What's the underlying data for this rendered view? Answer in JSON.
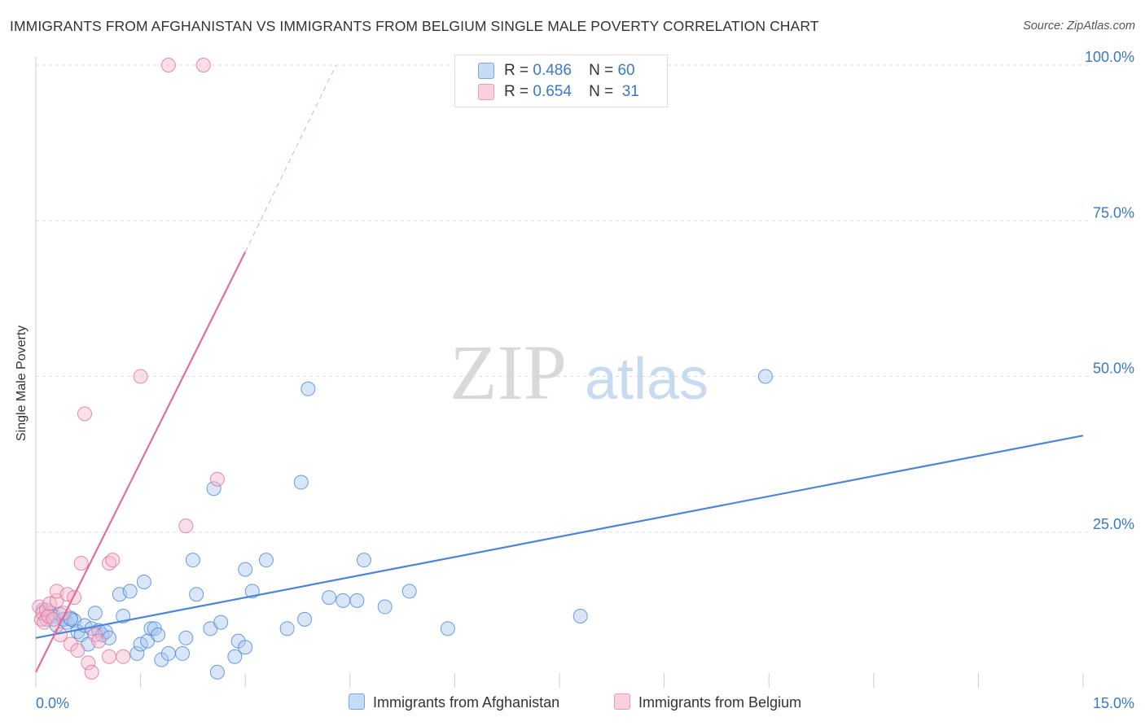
{
  "title": "IMMIGRANTS FROM AFGHANISTAN VS IMMIGRANTS FROM BELGIUM SINGLE MALE POVERTY CORRELATION CHART",
  "source": "Source: ZipAtlas.com",
  "watermark": {
    "zip": "ZIP",
    "atlas": "atlas"
  },
  "legend_box": {
    "rows": [
      {
        "r_label": "R =",
        "r_value": "0.486",
        "n_label": "N =",
        "n_value": "60",
        "color": "#a9c8f0"
      },
      {
        "r_label": "R =",
        "r_value": "0.654",
        "n_label": "N =",
        "n_value": "31",
        "color": "#f7b8cc"
      }
    ]
  },
  "bottom_legend": [
    "Immigrants from Afghanistan",
    "Immigrants from Belgium"
  ],
  "chart_data": {
    "type": "scatter",
    "title": "IMMIGRANTS FROM AFGHANISTAN VS IMMIGRANTS FROM BELGIUM SINGLE MALE POVERTY CORRELATION CHART",
    "xlabel": "",
    "ylabel": "Single Male Poverty",
    "xlim": [
      0,
      15
    ],
    "ylim": [
      0,
      105
    ],
    "x_ticks": [
      {
        "value": 0,
        "label": "0.0%"
      },
      {
        "value": 15,
        "label": "15.0%"
      }
    ],
    "y_ticks": [
      {
        "value": 25,
        "label": "25.0%"
      },
      {
        "value": 50,
        "label": "50.0%"
      },
      {
        "value": 75,
        "label": "75.0%"
      },
      {
        "value": 100,
        "label": "100.0%"
      }
    ],
    "grid": true,
    "series": [
      {
        "name": "Immigrants from Afghanistan",
        "color": "#4a86d8",
        "fill": "#a9c8f0",
        "r": 0.486,
        "n": 60,
        "points": [
          [
            0.1,
            12.5
          ],
          [
            0.15,
            11.0
          ],
          [
            0.2,
            12.0
          ],
          [
            0.25,
            11.5
          ],
          [
            0.3,
            10.0
          ],
          [
            0.35,
            11.8
          ],
          [
            0.4,
            11.0
          ],
          [
            0.45,
            10.5
          ],
          [
            0.5,
            11.2
          ],
          [
            0.55,
            10.8
          ],
          [
            0.6,
            9.0
          ],
          [
            0.65,
            8.5
          ],
          [
            0.7,
            10.0
          ],
          [
            0.75,
            7.0
          ],
          [
            0.8,
            9.5
          ],
          [
            0.85,
            12.0
          ],
          [
            0.9,
            9.2
          ],
          [
            0.95,
            8.5
          ],
          [
            1.0,
            9.0
          ],
          [
            1.05,
            8.0
          ],
          [
            1.2,
            15.0
          ],
          [
            1.25,
            11.5
          ],
          [
            1.35,
            15.5
          ],
          [
            1.45,
            5.5
          ],
          [
            1.5,
            7.0
          ],
          [
            1.55,
            17.0
          ],
          [
            1.6,
            7.5
          ],
          [
            1.65,
            9.5
          ],
          [
            1.7,
            9.5
          ],
          [
            1.75,
            8.5
          ],
          [
            1.8,
            4.5
          ],
          [
            1.9,
            5.5
          ],
          [
            2.1,
            5.5
          ],
          [
            2.15,
            8.0
          ],
          [
            2.25,
            20.5
          ],
          [
            2.3,
            15.0
          ],
          [
            2.5,
            9.5
          ],
          [
            2.6,
            2.5
          ],
          [
            2.65,
            10.5
          ],
          [
            2.85,
            5.0
          ],
          [
            2.9,
            7.5
          ],
          [
            3.0,
            6.5
          ],
          [
            2.55,
            32.0
          ],
          [
            3.0,
            19.0
          ],
          [
            3.1,
            15.5
          ],
          [
            3.3,
            20.5
          ],
          [
            3.6,
            9.5
          ],
          [
            3.8,
            33.0
          ],
          [
            3.85,
            11.0
          ],
          [
            3.9,
            48.0
          ],
          [
            4.2,
            14.5
          ],
          [
            4.4,
            14.0
          ],
          [
            4.6,
            14.0
          ],
          [
            4.7,
            20.5
          ],
          [
            5.0,
            13.0
          ],
          [
            5.35,
            15.5
          ],
          [
            5.9,
            9.5
          ],
          [
            7.8,
            11.5
          ],
          [
            10.45,
            50.0
          ],
          [
            0.5,
            11.0
          ]
        ],
        "trend": {
          "x0": 0,
          "y0": 8.0,
          "x1": 15,
          "y1": 40.5
        }
      },
      {
        "name": "Immigrants from Belgium",
        "color": "#e0709a",
        "fill": "#f7b8cc",
        "r": 0.654,
        "n": 31,
        "points": [
          [
            0.05,
            13.0
          ],
          [
            0.08,
            11.0
          ],
          [
            0.1,
            12.0
          ],
          [
            0.12,
            10.5
          ],
          [
            0.15,
            12.5
          ],
          [
            0.18,
            11.5
          ],
          [
            0.2,
            13.5
          ],
          [
            0.25,
            11.0
          ],
          [
            0.3,
            14.0
          ],
          [
            0.3,
            15.5
          ],
          [
            0.35,
            8.5
          ],
          [
            0.4,
            12.0
          ],
          [
            0.45,
            15.0
          ],
          [
            0.5,
            7.0
          ],
          [
            0.55,
            14.5
          ],
          [
            0.6,
            6.0
          ],
          [
            0.65,
            20.0
          ],
          [
            0.7,
            44.0
          ],
          [
            0.75,
            4.0
          ],
          [
            0.8,
            2.5
          ],
          [
            0.85,
            8.5
          ],
          [
            0.9,
            7.5
          ],
          [
            1.05,
            20.0
          ],
          [
            1.1,
            20.5
          ],
          [
            1.05,
            5.0
          ],
          [
            1.25,
            5.0
          ],
          [
            1.5,
            50.0
          ],
          [
            2.15,
            26.0
          ],
          [
            2.6,
            33.5
          ],
          [
            1.9,
            100.0
          ],
          [
            2.4,
            100.0
          ]
        ],
        "trend": {
          "x0": 0,
          "y0": 2.5,
          "x1": 3.0,
          "y1": 70.0
        },
        "trend_dashed_to": {
          "x": 4.3,
          "y": 100.0
        }
      }
    ]
  }
}
